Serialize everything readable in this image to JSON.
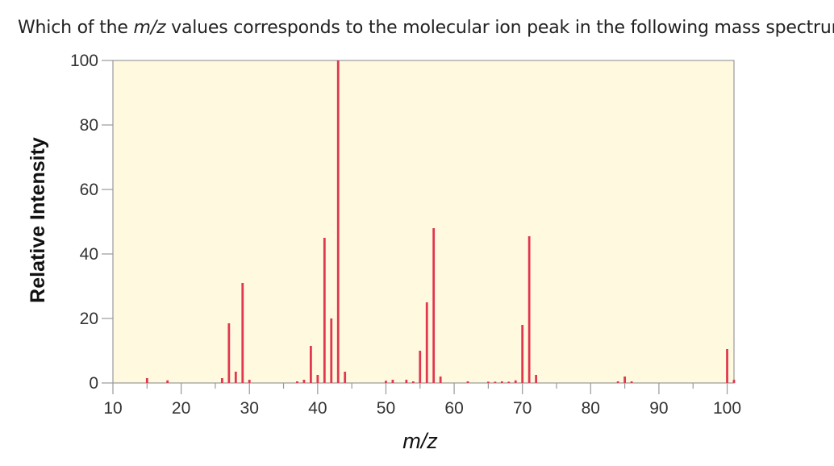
{
  "question": {
    "prefix": "Which of the ",
    "emphasis": "m/z",
    "suffix": " values corresponds to the molecular ion peak in the following mass spectrum?"
  },
  "colors": {
    "plot_background": "#fff9e0",
    "bar": "#e0384f",
    "axis": "#999999",
    "text": "#222222"
  },
  "chart_data": {
    "type": "bar",
    "title": "",
    "xlabel": "m/z",
    "ylabel": "Relative Intensity",
    "xlim": [
      10,
      101
    ],
    "ylim": [
      0,
      100
    ],
    "xticks": [
      10,
      20,
      30,
      40,
      50,
      60,
      70,
      80,
      90,
      100
    ],
    "yticks": [
      0,
      20,
      40,
      60,
      80,
      100
    ],
    "grid": false,
    "legend": "none",
    "peaks": [
      {
        "mz": 15,
        "intensity": 1.5
      },
      {
        "mz": 18,
        "intensity": 0.8
      },
      {
        "mz": 26,
        "intensity": 1.5
      },
      {
        "mz": 27,
        "intensity": 18.5
      },
      {
        "mz": 28,
        "intensity": 3.5
      },
      {
        "mz": 29,
        "intensity": 31
      },
      {
        "mz": 30,
        "intensity": 1
      },
      {
        "mz": 37,
        "intensity": 0.5
      },
      {
        "mz": 38,
        "intensity": 1
      },
      {
        "mz": 39,
        "intensity": 11.5
      },
      {
        "mz": 40,
        "intensity": 2.5
      },
      {
        "mz": 41,
        "intensity": 45
      },
      {
        "mz": 42,
        "intensity": 20
      },
      {
        "mz": 43,
        "intensity": 100
      },
      {
        "mz": 44,
        "intensity": 3.5
      },
      {
        "mz": 50,
        "intensity": 0.7
      },
      {
        "mz": 51,
        "intensity": 1
      },
      {
        "mz": 53,
        "intensity": 1
      },
      {
        "mz": 54,
        "intensity": 0.5
      },
      {
        "mz": 55,
        "intensity": 10
      },
      {
        "mz": 56,
        "intensity": 25
      },
      {
        "mz": 57,
        "intensity": 48
      },
      {
        "mz": 58,
        "intensity": 2
      },
      {
        "mz": 62,
        "intensity": 0.5
      },
      {
        "mz": 65,
        "intensity": 0.4
      },
      {
        "mz": 66,
        "intensity": 0.4
      },
      {
        "mz": 67,
        "intensity": 0.5
      },
      {
        "mz": 68,
        "intensity": 0.4
      },
      {
        "mz": 69,
        "intensity": 0.8
      },
      {
        "mz": 70,
        "intensity": 18
      },
      {
        "mz": 71,
        "intensity": 45.5
      },
      {
        "mz": 72,
        "intensity": 2.5
      },
      {
        "mz": 84,
        "intensity": 0.5
      },
      {
        "mz": 85,
        "intensity": 2
      },
      {
        "mz": 86,
        "intensity": 0.5
      },
      {
        "mz": 100,
        "intensity": 10.5
      },
      {
        "mz": 101,
        "intensity": 1
      }
    ]
  }
}
